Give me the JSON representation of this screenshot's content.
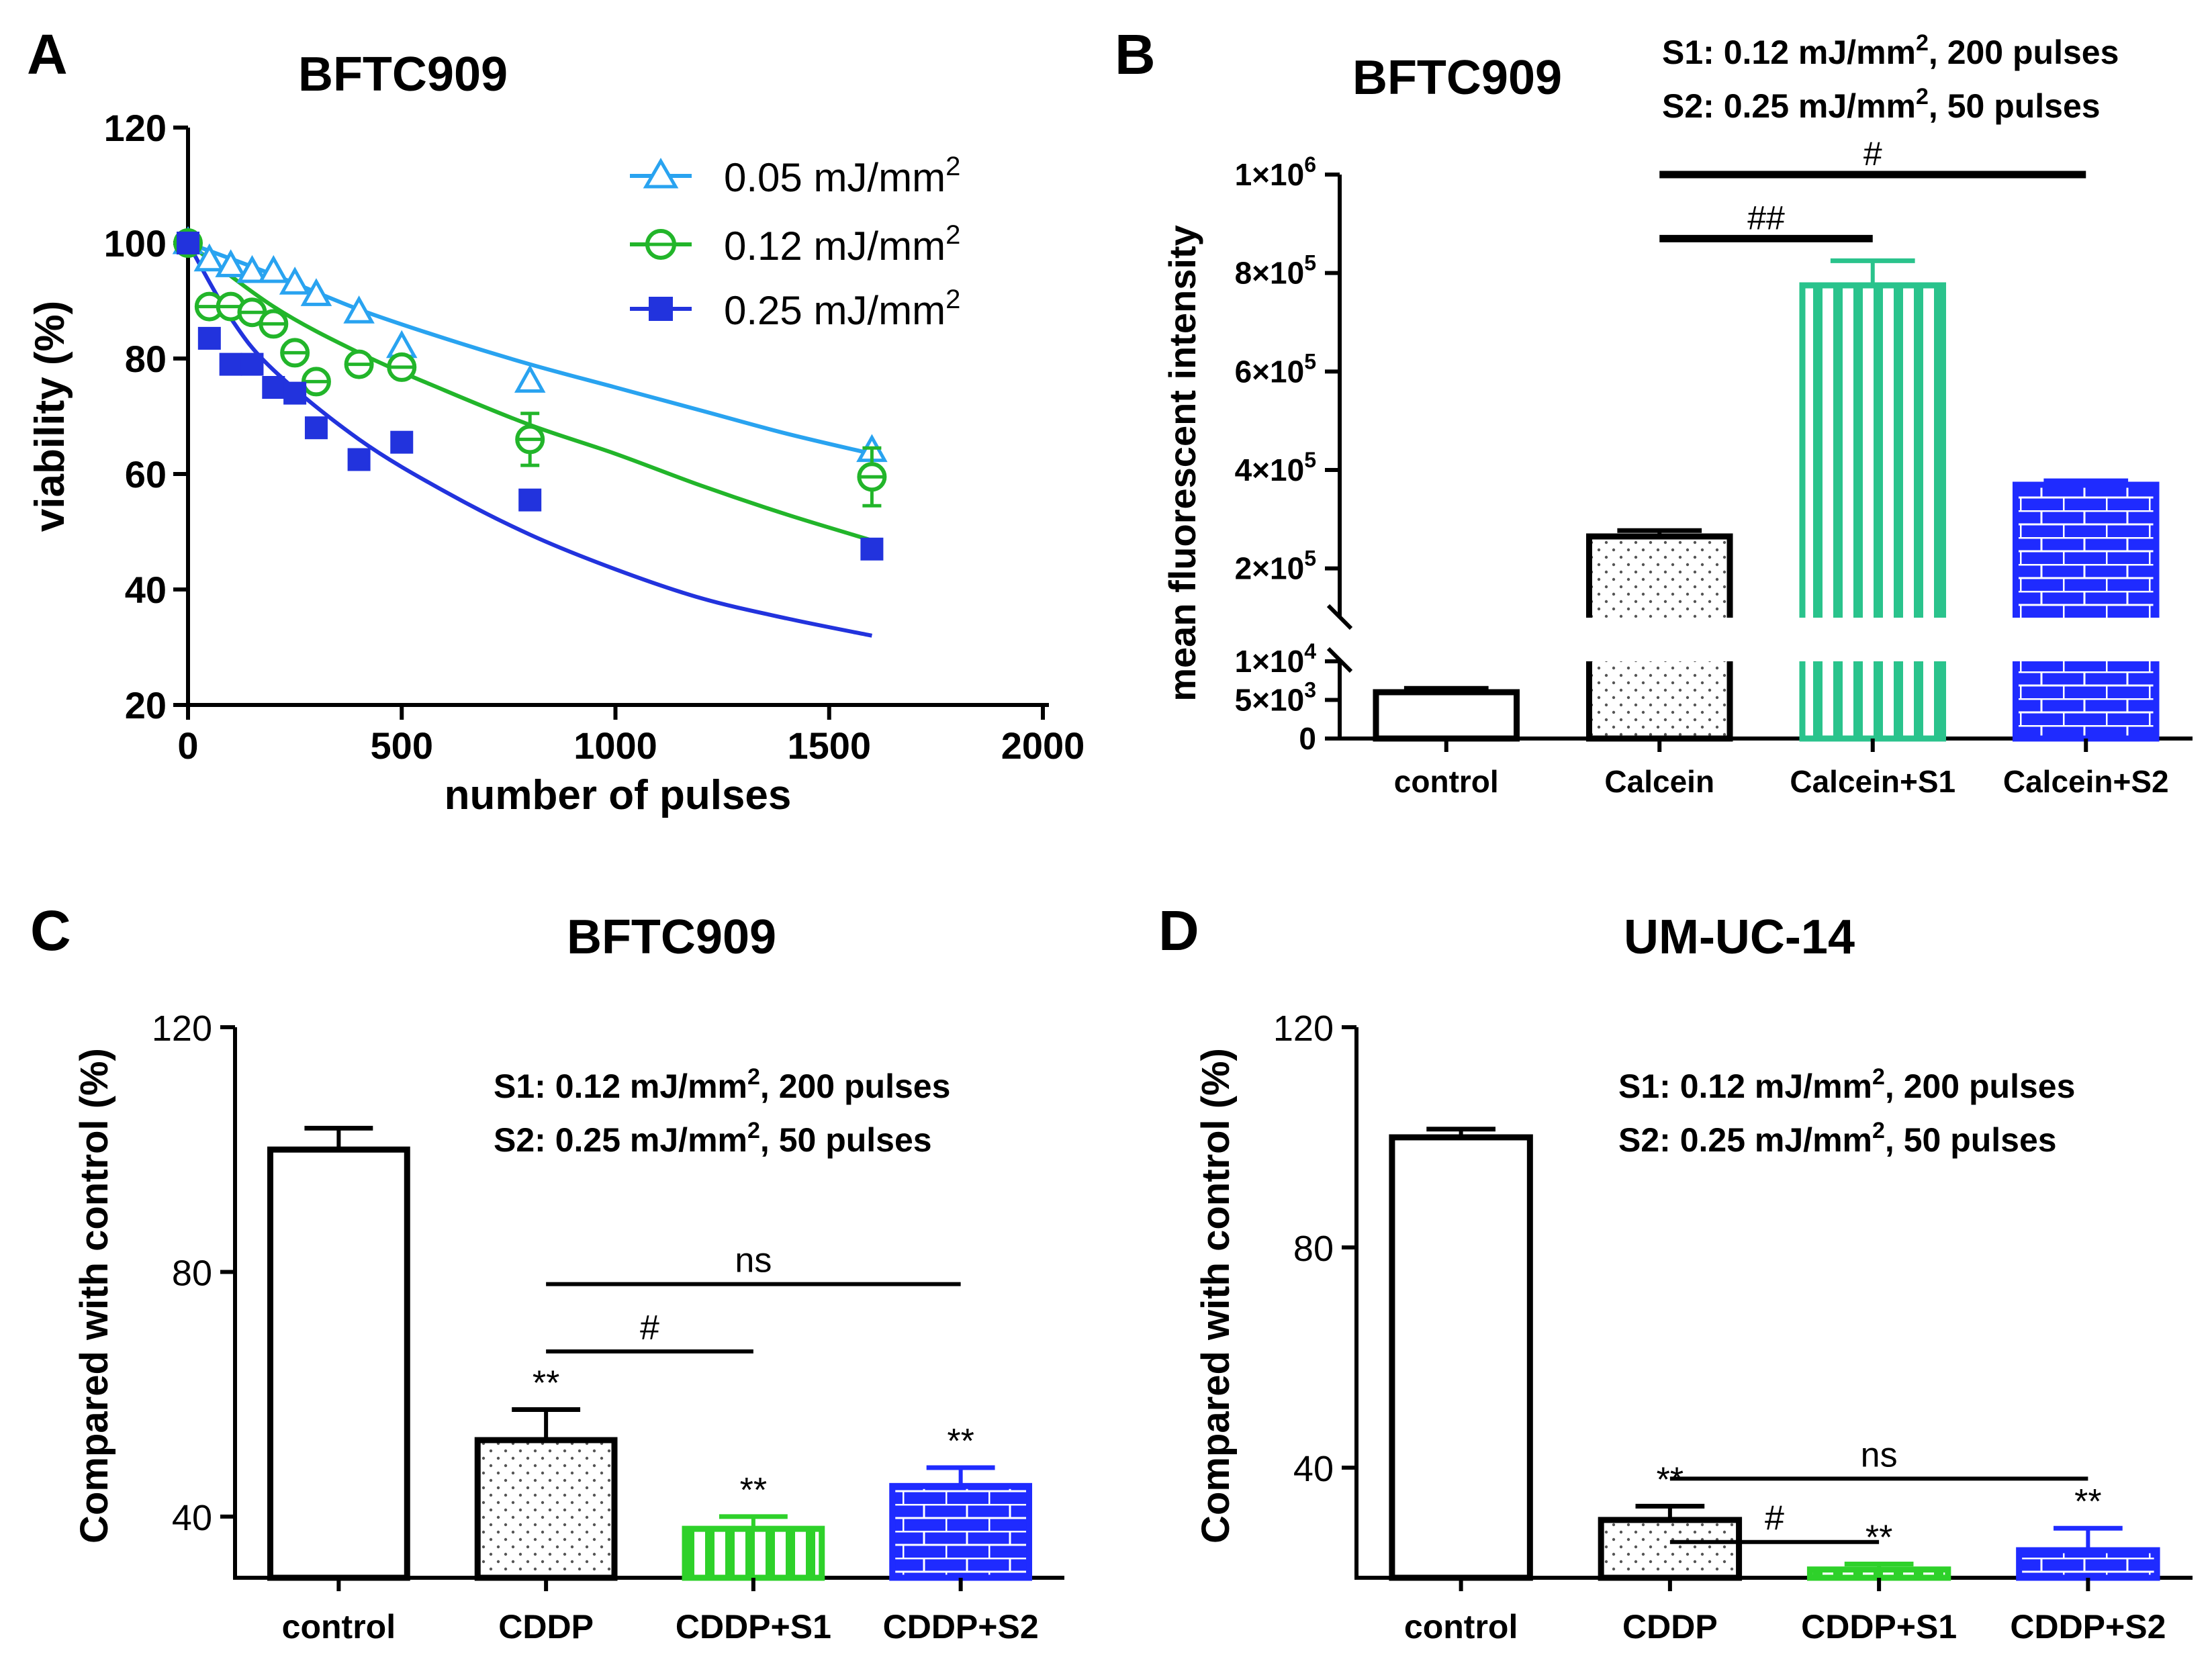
{
  "chart_data": [
    {
      "panel": "A",
      "type": "scatter",
      "title": "BFTC909",
      "xlabel": "number of pulses",
      "ylabel": "viability (%)",
      "xlim": [
        0,
        2000
      ],
      "ylim": [
        20,
        120
      ],
      "xticks": [
        0,
        500,
        1000,
        1500,
        2000
      ],
      "yticks": [
        20,
        40,
        60,
        80,
        100,
        120
      ],
      "legend_position": "top-right",
      "series": [
        {
          "name": "0.05 mJ/mm",
          "sup": "2",
          "color": "#29a3f0",
          "marker": "triangle-open",
          "x": [
            0,
            50,
            100,
            150,
            200,
            250,
            300,
            400,
            500,
            800,
            1600
          ],
          "y": [
            100,
            97,
            96,
            95,
            95,
            93,
            91,
            88,
            82,
            76,
            64
          ],
          "fit": [
            [
              0,
              100
            ],
            [
              200,
              94.5
            ],
            [
              400,
              88.5
            ],
            [
              600,
              83.5
            ],
            [
              800,
              79
            ],
            [
              1000,
              75
            ],
            [
              1200,
              71
            ],
            [
              1400,
              67
            ],
            [
              1600,
              63.5
            ]
          ]
        },
        {
          "name": "0.12 mJ/mm",
          "sup": "2",
          "color": "#22b52a",
          "marker": "circle-open",
          "x": [
            0,
            50,
            100,
            150,
            200,
            250,
            300,
            400,
            500,
            800,
            1600
          ],
          "y": [
            100,
            89,
            89,
            88,
            86,
            81,
            76,
            79,
            78.5,
            66,
            59.5
          ],
          "err": [
            0,
            0,
            0,
            0,
            0,
            0,
            0,
            0,
            0,
            4.5,
            5
          ],
          "fit": [
            [
              0,
              100
            ],
            [
              200,
              89
            ],
            [
              400,
              81
            ],
            [
              600,
              74.5
            ],
            [
              800,
              68.5
            ],
            [
              1000,
              63.5
            ],
            [
              1200,
              58
            ],
            [
              1400,
              53
            ],
            [
              1600,
              48.5
            ]
          ]
        },
        {
          "name": "0.25 mJ/mm",
          "sup": "2",
          "color": "#2233dd",
          "marker": "square-filled",
          "x": [
            0,
            50,
            100,
            150,
            200,
            250,
            300,
            400,
            500,
            800,
            1600
          ],
          "y": [
            100,
            83.5,
            79,
            79,
            75,
            74,
            68,
            62.5,
            65.5,
            55.5,
            47
          ],
          "fit": [
            [
              0,
              100
            ],
            [
              100,
              87
            ],
            [
              200,
              78
            ],
            [
              400,
              66
            ],
            [
              600,
              57
            ],
            [
              800,
              49.5
            ],
            [
              1000,
              43.5
            ],
            [
              1200,
              38.5
            ],
            [
              1400,
              35
            ],
            [
              1600,
              32
            ]
          ]
        }
      ]
    },
    {
      "panel": "B",
      "type": "bar",
      "title": "BFTC909",
      "note_lines": [
        {
          "a": "S1: 0.12 mJ/mm",
          "sup": "2",
          "b": ", 200 pulses"
        },
        {
          "a": "S2: 0.25 mJ/mm",
          "sup": "2",
          "b": ", 50 pulses"
        }
      ],
      "ylabel": "mean fluorescent intensity",
      "categories": [
        "control",
        "Calcein",
        "Calcein+S1",
        "Calcein+S2"
      ],
      "values": [
        6000,
        265000,
        775000,
        370000
      ],
      "errors": [
        500,
        12000,
        50000,
        8000
      ],
      "patterns": [
        "none",
        "dots",
        "vertical-stripes",
        "bricks"
      ],
      "colors": [
        "#000000",
        "#000000",
        "#2ac38c",
        "#1f2bff"
      ],
      "y_lower_segment": [
        0,
        10000
      ],
      "y_upper_segment": [
        100000,
        1000000
      ],
      "y_lower_ticks": [
        {
          "v": 0,
          "m": "0",
          "e": ""
        },
        {
          "v": 5000,
          "m": "5×10",
          "e": "3"
        },
        {
          "v": 10000,
          "m": "1×10",
          "e": "4"
        }
      ],
      "y_upper_ticks": [
        {
          "v": 200000,
          "m": "2×10",
          "e": "5"
        },
        {
          "v": 400000,
          "m": "4×10",
          "e": "5"
        },
        {
          "v": 600000,
          "m": "6×10",
          "e": "5"
        },
        {
          "v": 800000,
          "m": "8×10",
          "e": "5"
        },
        {
          "v": 1000000,
          "m": "1×10",
          "e": "6"
        }
      ],
      "brackets": [
        {
          "from": 1,
          "to": 3,
          "label": "#",
          "y": 1000000
        },
        {
          "from": 1,
          "to": 2,
          "label": "##",
          "y": 870000
        }
      ]
    },
    {
      "panel": "C",
      "type": "bar",
      "title": "BFTC909",
      "note_lines": [
        {
          "a": "S1: 0.12 mJ/mm",
          "sup": "2",
          "b": ", 200 pulses"
        },
        {
          "a": "S2: 0.25 mJ/mm",
          "sup": "2",
          "b": ", 50 pulses"
        }
      ],
      "ylabel": "Compared with control (%)",
      "ylim": [
        30,
        120
      ],
      "yticks": [
        40,
        80,
        120
      ],
      "categories": [
        "control",
        "CDDP",
        "CDDP+S1",
        "CDDP+S2"
      ],
      "values": [
        100,
        52.5,
        38,
        45
      ],
      "errors": [
        3.5,
        5,
        2,
        3
      ],
      "significance": [
        "",
        "**",
        "**",
        "**"
      ],
      "patterns": [
        "none",
        "dots",
        "vertical-stripes",
        "bricks"
      ],
      "colors": [
        "#000000",
        "#000000",
        "#2ed12a",
        "#1f2bff"
      ],
      "brackets": [
        {
          "from": 1,
          "to": 3,
          "label": "ns",
          "y": 78
        },
        {
          "from": 1,
          "to": 2,
          "label": "#",
          "y": 67
        }
      ]
    },
    {
      "panel": "D",
      "type": "bar",
      "title": "UM-UC-14",
      "note_lines": [
        {
          "a": "S1: 0.12 mJ/mm",
          "sup": "2",
          "b": ", 200 pulses"
        },
        {
          "a": "S2: 0.25 mJ/mm",
          "sup": "2",
          "b": ", 50 pulses"
        }
      ],
      "ylabel": "Compared with control (%)",
      "ylim": [
        20,
        120
      ],
      "yticks": [
        40,
        80,
        120
      ],
      "categories": [
        "control",
        "CDDP",
        "CDDP+S1",
        "CDDP+S2"
      ],
      "values": [
        100,
        30.5,
        21.5,
        25
      ],
      "errors": [
        1.5,
        2.5,
        1,
        4
      ],
      "significance": [
        "",
        "**",
        "**",
        "**"
      ],
      "patterns": [
        "none",
        "dots",
        "vertical-stripes",
        "bricks"
      ],
      "colors": [
        "#000000",
        "#000000",
        "#2ed12a",
        "#1f2bff"
      ],
      "brackets": [
        {
          "from": 1,
          "to": 3,
          "label": "ns",
          "y": 38
        },
        {
          "from": 1,
          "to": 2,
          "label": "#",
          "y": 26.5
        }
      ]
    }
  ],
  "panel_letters": [
    "A",
    "B",
    "C",
    "D"
  ]
}
